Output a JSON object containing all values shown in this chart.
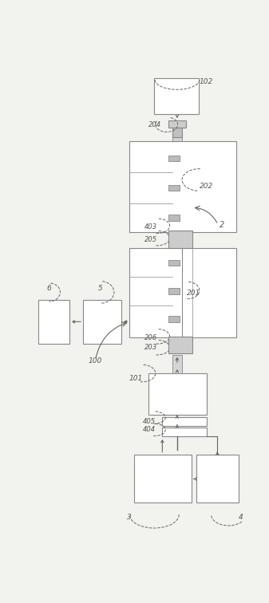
{
  "bg_color": "#f2f2ee",
  "lc": "#666666",
  "ec": "#888888",
  "tc": "#555555",
  "fig_w": 3.37,
  "fig_h": 7.56
}
